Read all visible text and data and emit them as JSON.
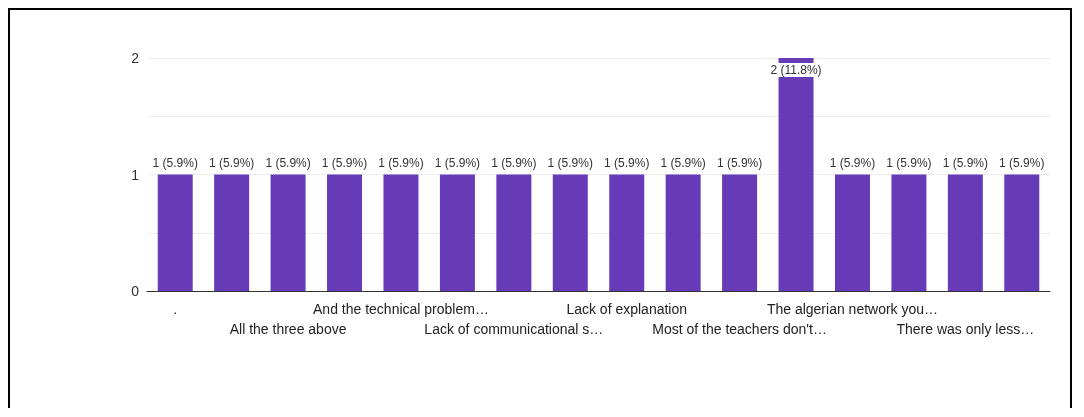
{
  "chart_data": {
    "type": "bar",
    "categories": [
      ".",
      null,
      "All the three above",
      null,
      "And the technical problem…",
      null,
      "Lack of communicational s…",
      null,
      "Lack of explanation",
      null,
      "Most of the teachers don't…",
      null,
      "The algerian network you…",
      null,
      "There was only less…",
      null
    ],
    "values": [
      1,
      1,
      1,
      1,
      1,
      1,
      1,
      1,
      1,
      1,
      1,
      2,
      1,
      1,
      1,
      1
    ],
    "value_labels": [
      "1 (5.9%)",
      "1 (5.9%)",
      "1 (5.9%)",
      "1 (5.9%)",
      "1 (5.9%)",
      "1 (5.9%)",
      "1 (5.9%)",
      "1 (5.9%)",
      "1 (5.9%)",
      "1 (5.9%)",
      "1 (5.9%)",
      "2 (11.8%)",
      "1 (5.9%)",
      "1 (5.9%)",
      "1 (5.9%)",
      "1 (5.9%)"
    ],
    "color": "#673ab7",
    "ylim": [
      0,
      2
    ],
    "yticks": [
      0,
      {
        "value": 0.5,
        "label": null
      },
      1,
      {
        "value": 1.5,
        "label": null
      },
      2
    ],
    "grid": true
  }
}
